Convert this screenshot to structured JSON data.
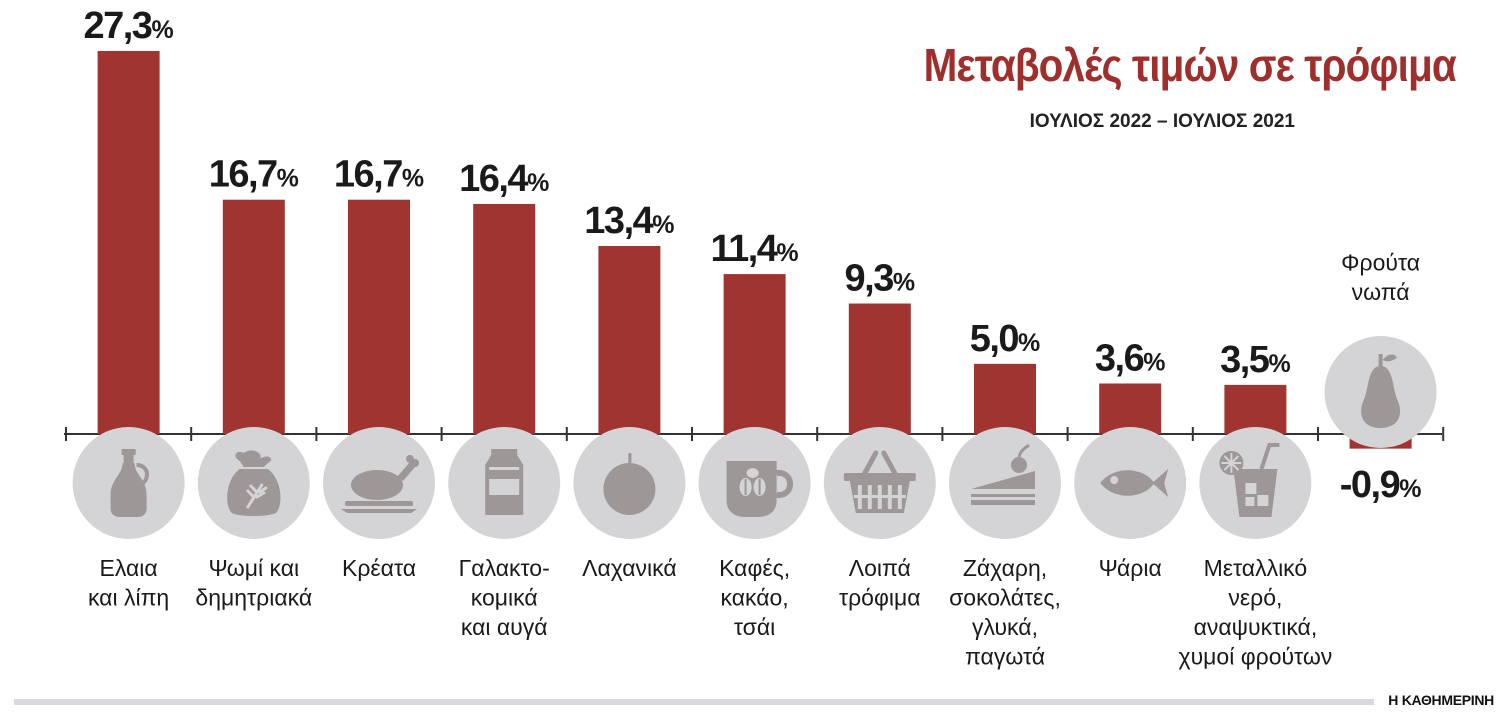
{
  "title": "Μεταβολές τιμών σε τρόφιμα",
  "subtitle": "ΙΟΥΛΙΟΣ 2022 – ΙΟΥΛΙΟΣ 2021",
  "credit": "Η ΚΑΘΗΜΕΡΙΝΗ",
  "colors": {
    "bar": "#a03431",
    "icon_circle": "#d4d3d5",
    "icon": "#9d9798",
    "title": "#9e2f2d"
  },
  "chart_data": {
    "type": "bar",
    "title": "Μεταβολές τιμών σε τρόφιμα",
    "subtitle": "ΙΟΥΛΙΟΣ 2022 – ΙΟΥΛΙΟΣ 2021",
    "unit": "%",
    "categories": [
      {
        "lines": [
          "Ελαια",
          "και λίπη"
        ],
        "icon": "oil-bottle-icon"
      },
      {
        "lines": [
          "Ψωμί και",
          "δημητριακά"
        ],
        "icon": "grain-sack-icon"
      },
      {
        "lines": [
          "Κρέατα"
        ],
        "icon": "roast-chicken-icon"
      },
      {
        "lines": [
          "Γαλακτο-",
          "κομικά",
          "και αυγά"
        ],
        "icon": "milk-carton-icon"
      },
      {
        "lines": [
          "Λαχανικά"
        ],
        "icon": "tomato-icon"
      },
      {
        "lines": [
          "Καφές,",
          "κακάο,",
          "τσάι"
        ],
        "icon": "coffee-cup-icon"
      },
      {
        "lines": [
          "Λοιπά",
          "τρόφιμα"
        ],
        "icon": "shopping-basket-icon"
      },
      {
        "lines": [
          "Ζάχαρη,",
          "σοκολάτες,",
          "γλυκά,",
          "παγωτά"
        ],
        "icon": "cake-slice-icon"
      },
      {
        "lines": [
          "Ψάρια"
        ],
        "icon": "fish-icon"
      },
      {
        "lines": [
          "Μεταλλικό",
          "νερό,",
          "αναψυκτικά,",
          "χυμοί φρούτων"
        ],
        "icon": "iced-drink-icon"
      },
      {
        "lines": [
          "Φρούτα",
          "νωπά"
        ],
        "icon": "pear-icon"
      }
    ],
    "values": [
      27.3,
      16.7,
      16.7,
      16.4,
      13.4,
      11.4,
      9.3,
      5.0,
      3.6,
      3.5,
      -0.9
    ],
    "value_labels": [
      "27,3",
      "16,7",
      "16,7",
      "16,4",
      "13,4",
      "11,4",
      "9,3",
      "5,0",
      "3,6",
      "3,5",
      "-0,9"
    ],
    "ylim": [
      -0.9,
      27.3
    ],
    "grid": false,
    "legend": "none"
  }
}
